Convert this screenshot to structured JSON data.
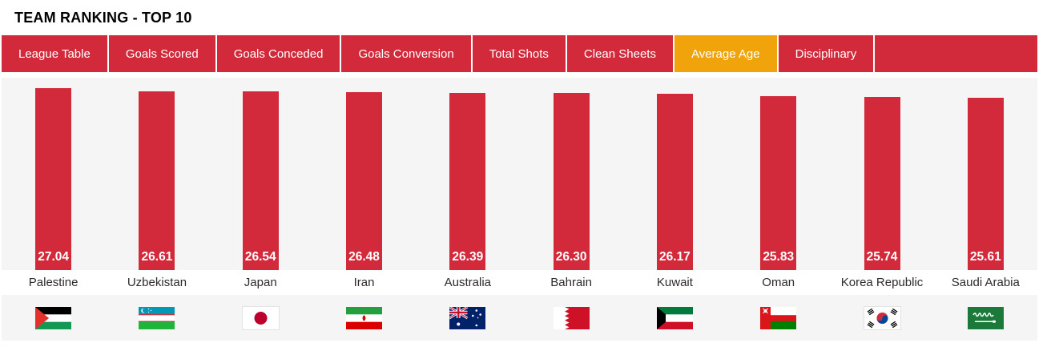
{
  "page_title": "TEAM RANKING - TOP 10",
  "tabs": [
    {
      "label": "League Table",
      "active": false
    },
    {
      "label": "Goals Scored",
      "active": false
    },
    {
      "label": "Goals Conceded",
      "active": false
    },
    {
      "label": "Goals Conversion",
      "active": false
    },
    {
      "label": "Total Shots",
      "active": false
    },
    {
      "label": "Clean Sheets",
      "active": false
    },
    {
      "label": "Average Age",
      "active": true
    },
    {
      "label": "Disciplinary",
      "active": false
    }
  ],
  "colors": {
    "accent_red": "#D2293B",
    "active_tab_orange": "#F0A30B",
    "chart_background": "#F5F5F5",
    "value_label_color": "#FFFFFF",
    "bar_color": "#D2293B"
  },
  "chart_data": {
    "type": "bar",
    "title": "TEAM RANKING - TOP 10",
    "metric": "Average Age",
    "categories": [
      "Palestine",
      "Uzbekistan",
      "Japan",
      "Iran",
      "Australia",
      "Bahrain",
      "Kuwait",
      "Oman",
      "Korea Republic",
      "Saudi Arabia"
    ],
    "values": [
      27.04,
      26.61,
      26.54,
      26.48,
      26.39,
      26.3,
      26.17,
      25.83,
      25.74,
      25.61
    ],
    "value_labels": [
      "27.04",
      "26.61",
      "26.54",
      "26.48",
      "26.39",
      "26.30",
      "26.17",
      "25.83",
      "25.74",
      "25.61"
    ],
    "flags": [
      "palestine",
      "uzbekistan",
      "japan",
      "iran",
      "australia",
      "bahrain",
      "kuwait",
      "oman",
      "korea-republic",
      "saudi-arabia"
    ],
    "xlabel": "",
    "ylabel": "",
    "ylim": [
      0,
      28.6
    ],
    "grid": false,
    "legend": false,
    "value_labels_position": "inside-bottom"
  }
}
